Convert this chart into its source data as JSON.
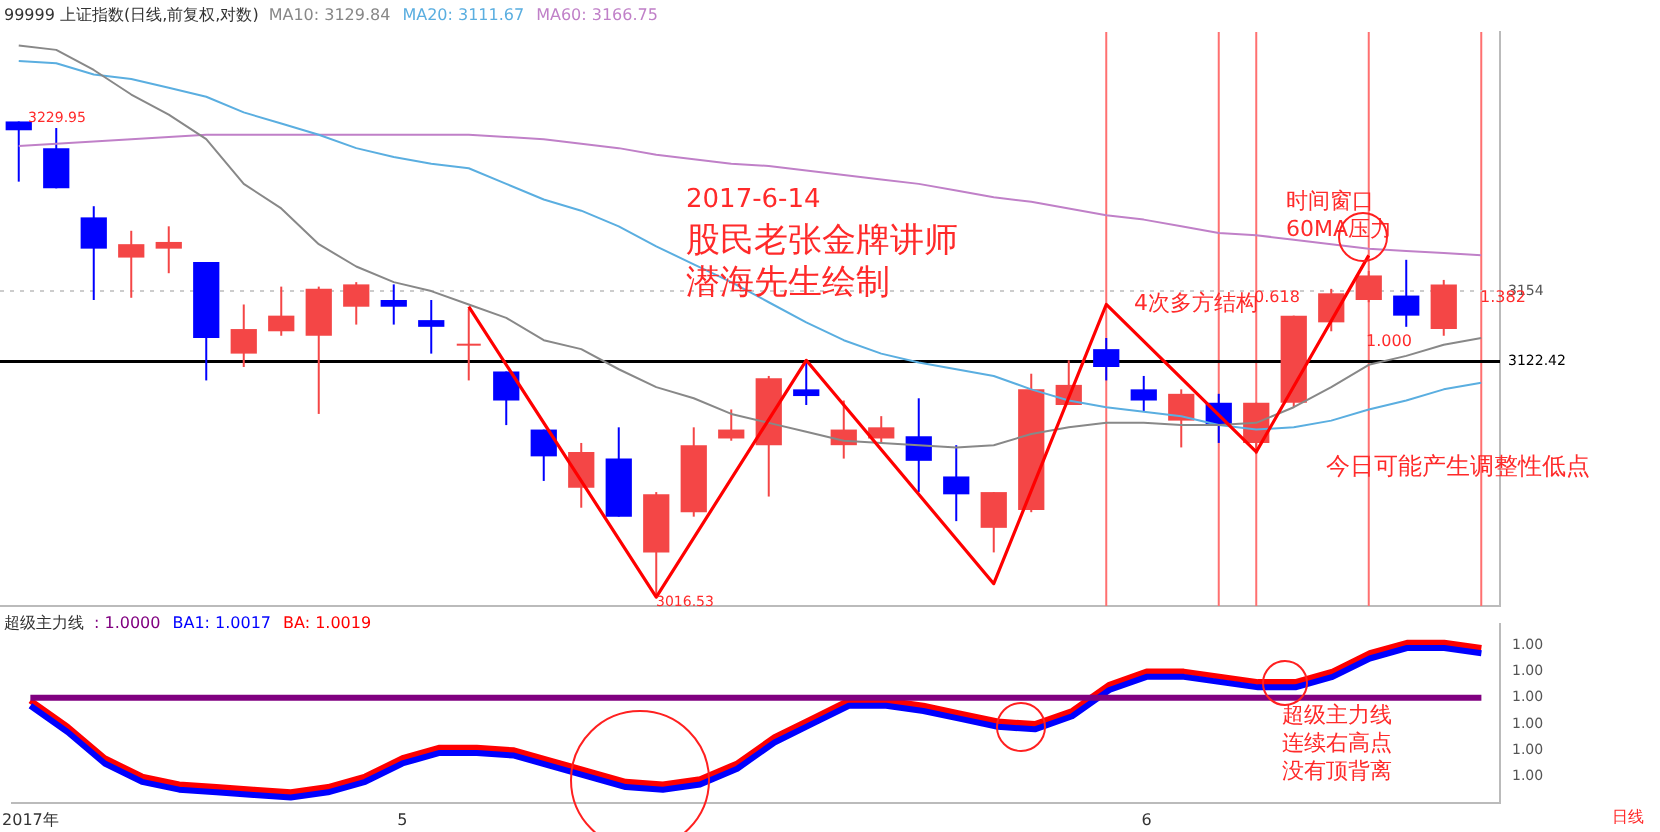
{
  "chart_data": [
    {
      "type": "candlestick",
      "title": "99999 上证指数(日线,前复权,对数)",
      "categories": [
        null,
        null,
        null,
        null,
        null,
        null,
        null,
        null,
        null,
        null,
        null,
        null,
        null,
        null,
        null,
        null,
        null,
        null,
        null,
        null,
        null,
        null,
        null,
        null,
        null,
        null,
        null,
        null,
        null,
        null,
        null,
        null,
        null,
        null,
        null,
        null,
        null,
        null,
        null,
        null
      ],
      "ohlc": [
        [
          3229.95,
          3229.95,
          3203,
          3226
        ],
        [
          3218,
          3227,
          3200,
          3200
        ],
        [
          3187,
          3192,
          3150,
          3173
        ],
        [
          3169,
          3181,
          3151,
          3175
        ],
        [
          3173,
          3183,
          3162,
          3176
        ],
        [
          3167,
          3167,
          3114,
          3133
        ],
        [
          3126,
          3148,
          3120,
          3137
        ],
        [
          3136,
          3156,
          3134,
          3143
        ],
        [
          3134,
          3156,
          3099,
          3155
        ],
        [
          3147,
          3158,
          3139,
          3157
        ],
        [
          3150,
          3157,
          3139,
          3147
        ],
        [
          3141,
          3150,
          3126,
          3138
        ],
        [
          3130,
          3146,
          3114,
          3130
        ],
        [
          3118,
          3118,
          3094,
          3105
        ],
        [
          3092,
          3092,
          3069,
          3080
        ],
        [
          3066,
          3086,
          3057,
          3082
        ],
        [
          3079,
          3093,
          3053,
          3053
        ],
        [
          3037,
          3064,
          3016.53,
          3063
        ],
        [
          3055,
          3093,
          3053,
          3085
        ],
        [
          3088,
          3101,
          3087,
          3092
        ],
        [
          3085,
          3116,
          3062,
          3115
        ],
        [
          3110,
          3123,
          3103,
          3107
        ],
        [
          3085,
          3105,
          3079,
          3092
        ],
        [
          3088,
          3098,
          3086,
          3093
        ],
        [
          3089,
          3106,
          3064,
          3078
        ],
        [
          3071,
          3085,
          3051,
          3063
        ],
        [
          3048,
          3064,
          3037,
          3064
        ],
        [
          3056,
          3117,
          3055,
          3110
        ],
        [
          3103,
          3123,
          3103,
          3112
        ],
        [
          3128,
          3133,
          3114,
          3120
        ],
        [
          3110,
          3116,
          3100,
          3105
        ],
        [
          3096,
          3110,
          3084,
          3108
        ],
        [
          3104,
          3108,
          3086,
          3094
        ],
        [
          3086,
          3104,
          3081,
          3104
        ],
        [
          3104,
          3143,
          3102,
          3143
        ],
        [
          3140,
          3155,
          3136,
          3153
        ],
        [
          3150,
          3163,
          3149,
          3161
        ],
        [
          3152,
          3168,
          3138,
          3143
        ],
        [
          3137,
          3159,
          3134,
          3157
        ],
        null
      ],
      "colors": [
        "#0000ff",
        "#0000ff",
        "#0000ff",
        "#f44646",
        "#f44646",
        "#0000ff",
        "#f44646",
        "#f44646",
        "#f44646",
        "#f44646",
        "#0000ff",
        "#0000ff",
        "#f44646",
        "#0000ff",
        "#0000ff",
        "#f44646",
        "#0000ff",
        "#f44646",
        "#f44646",
        "#f44646",
        "#f44646",
        "#0000ff",
        "#f44646",
        "#f44646",
        "#0000ff",
        "#0000ff",
        "#f44646",
        "#f44646",
        "#f44646",
        "#0000ff",
        "#0000ff",
        "#f44646",
        "#0000ff",
        "#f44646",
        "#f44646",
        "#f44646",
        "#f44646",
        "#0000ff",
        "#f44646",
        null
      ],
      "series": [
        {
          "type": "line",
          "name": "MA10: 3129.84",
          "color": "#888888",
          "values": [
            3264,
            3262,
            3253,
            3242,
            3233,
            3222,
            3202,
            3191,
            3175,
            3165,
            3158,
            3154,
            3148,
            3142,
            3132,
            3128,
            3119,
            3111,
            3106,
            3099,
            3095,
            3091,
            3087,
            3086,
            3085,
            3084,
            3085,
            3090,
            3093,
            3095,
            3095,
            3094,
            3094,
            3095,
            3102,
            3111,
            3121,
            3125,
            3130,
            3133
          ]
        },
        {
          "type": "line",
          "name": "MA20: 3111.67",
          "color": "#5aaee0",
          "values": [
            3257,
            3256,
            3251,
            3249,
            3245,
            3241,
            3234,
            3229,
            3224,
            3218,
            3214,
            3211,
            3209,
            3202,
            3195,
            3190,
            3183,
            3174,
            3166,
            3158,
            3149,
            3140,
            3132,
            3126,
            3122,
            3119,
            3116,
            3110,
            3105,
            3102,
            3100,
            3098,
            3094,
            3092,
            3093,
            3096,
            3101,
            3105,
            3110,
            3113
          ]
        },
        {
          "type": "line",
          "name": "MA60: 3166.75",
          "color": "#c080c8",
          "values": [
            3219,
            3220,
            3221,
            3222,
            3223,
            3224,
            3224,
            3224,
            3224,
            3224,
            3224,
            3224,
            3224,
            3223,
            3222,
            3220,
            3218,
            3215,
            3213,
            3211,
            3210,
            3208,
            3206,
            3204,
            3202,
            3199,
            3196,
            3194,
            3191,
            3188,
            3186,
            3183,
            3180,
            3179,
            3177,
            3175,
            3173,
            3172,
            3171,
            3170
          ]
        },
        {
          "type": "line",
          "color": "#ff0000",
          "values": [
            null,
            null,
            null,
            null,
            null,
            null,
            null,
            null,
            null,
            null,
            null,
            null,
            3147,
            null,
            null,
            null,
            null,
            3017,
            null,
            null,
            null,
            3123,
            null,
            null,
            null,
            null,
            3023,
            null,
            null,
            3148,
            null,
            null,
            null,
            3082,
            null,
            null,
            3170,
            null,
            null,
            null
          ]
        }
      ],
      "ylim": [
        3013,
        3270
      ],
      "legend": "top",
      "marker": "none",
      "grid": "x",
      "ref_lines": [
        {
          "axis": "y",
          "value": 3154,
          "label": "3154",
          "color": "#cccccc",
          "line_style": "dotted"
        },
        {
          "axis": "y",
          "value": 3122.42,
          "label": "3122.42",
          "color": "#000000"
        }
      ],
      "annotations": [
        "2017-6-14",
        "股民老张金牌讲师",
        "潜海先生绘制",
        "4次多方结构",
        "时间窗口",
        "60MA压力",
        "今日可能产生调整性低点",
        "3229.95",
        "3016.53",
        "0.618",
        "1.000",
        "1.382"
      ]
    },
    {
      "type": "line",
      "title": "超级主力线",
      "categories": [
        "2017年",
        null,
        null,
        null,
        null,
        null,
        null,
        null,
        null,
        null,
        "5",
        null,
        null,
        null,
        null,
        null,
        null,
        null,
        null,
        null,
        null,
        null,
        null,
        null,
        null,
        null,
        null,
        null,
        null,
        null,
        "6",
        null,
        null,
        null,
        null,
        null,
        null,
        null,
        null,
        null
      ],
      "series": [
        {
          "name": ": 1.0000",
          "color": "#800080",
          "values": [
            1,
            1,
            1,
            1,
            1,
            1,
            1,
            1,
            1,
            1,
            1,
            1,
            1,
            1,
            1,
            1,
            1,
            1,
            1,
            1,
            1,
            1,
            1,
            1,
            1,
            1,
            1,
            1,
            1,
            1,
            1,
            1,
            1,
            1,
            1,
            1,
            1,
            1,
            1,
            1
          ]
        },
        {
          "name": "BA1: 1.0017",
          "color": "#0000ff",
          "values": [
            0.9997,
            0.9987,
            0.9975,
            0.9968,
            0.9965,
            0.9964,
            0.9963,
            0.9962,
            0.9964,
            0.9968,
            0.9975,
            0.9979,
            0.9979,
            0.9978,
            0.9974,
            0.997,
            0.9966,
            0.9965,
            0.9967,
            0.9973,
            0.9983,
            0.999,
            0.9997,
            0.9997,
            0.9995,
            0.9992,
            0.9989,
            0.9988,
            0.9993,
            1.0003,
            1.0008,
            1.0008,
            1.0006,
            1.0004,
            1.0004,
            1.0008,
            1.0015,
            1.0019,
            1.0019,
            1.0017
          ]
        },
        {
          "name": "BA: 1.0019",
          "color": "#ff0000",
          "values": [
            0.9999,
            0.9989,
            0.9977,
            0.997,
            0.9967,
            0.9966,
            0.9965,
            0.9964,
            0.9966,
            0.997,
            0.9977,
            0.9981,
            0.9981,
            0.998,
            0.9976,
            0.9972,
            0.9968,
            0.9967,
            0.9969,
            0.9975,
            0.9985,
            0.9992,
            0.9999,
            0.9999,
            0.9997,
            0.9994,
            0.9991,
            0.999,
            0.9995,
            1.0005,
            1.001,
            1.001,
            1.0008,
            1.0006,
            1.0006,
            1.001,
            1.0017,
            1.0021,
            1.0021,
            1.0019
          ]
        }
      ],
      "ylim": [
        0.996,
        1.0028
      ],
      "yticks": [
        {
          "value": 1.002,
          "label": "1.00"
        },
        {
          "value": 1.001,
          "label": "1.00"
        },
        {
          "value": 1.0,
          "label": "1.00"
        },
        {
          "value": 0.999,
          "label": "1.00"
        },
        {
          "value": 0.998,
          "label": "1.00"
        },
        {
          "value": 0.997,
          "label": "1.00"
        }
      ],
      "legend": "top left",
      "marker": "none",
      "annotations": [
        "超级主力线",
        "连续右高点",
        "没有顶背离",
        "日线"
      ]
    }
  ]
}
